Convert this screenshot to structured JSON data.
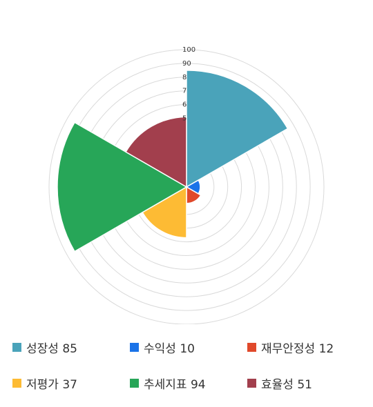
{
  "chart_data": {
    "type": "polar-area",
    "title": "",
    "radial_ticks": [
      "100",
      "90",
      "8",
      "7",
      "6",
      "5"
    ],
    "rmax": 100,
    "categories": [
      "성장성",
      "수익성",
      "재무안정성",
      "저평가",
      "추세지표",
      "효율성"
    ],
    "values": [
      85,
      10,
      12,
      37,
      94,
      51
    ],
    "colors": [
      "#4aa3ba",
      "#1a73e8",
      "#e0492b",
      "#fdbb34",
      "#27a658",
      "#a23f4d"
    ],
    "legend": [
      {
        "label": "성장성 85",
        "color": "#4aa3ba"
      },
      {
        "label": "수익성 10",
        "color": "#1a73e8"
      },
      {
        "label": "재무안정성 12",
        "color": "#e0492b"
      },
      {
        "label": "저평가 37",
        "color": "#fdbb34"
      },
      {
        "label": "추세지표 94",
        "color": "#27a658"
      },
      {
        "label": "효율성 51",
        "color": "#a23f4d"
      }
    ],
    "legend_position": "bottom"
  }
}
